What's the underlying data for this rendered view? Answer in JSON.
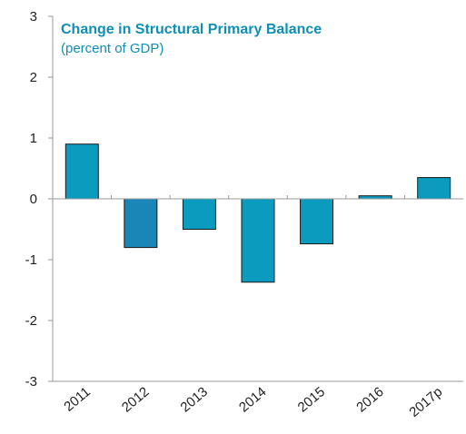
{
  "chart_data": {
    "type": "bar",
    "title": "Change in Structural Primary Balance",
    "subtitle": "(percent of GDP)",
    "categories": [
      "2011",
      "2012",
      "2013",
      "2014",
      "2015",
      "2016",
      "2017p"
    ],
    "values": [
      0.9,
      -0.8,
      -0.5,
      -1.37,
      -0.74,
      0.05,
      0.35
    ],
    "ylim": [
      -3,
      3
    ],
    "yticks": [
      3,
      2,
      1,
      0,
      -1,
      -2,
      -3
    ],
    "grid": false,
    "colors": {
      "bars": [
        "#0a9bbf",
        "#1a86b8",
        "#0a9bbf",
        "#0a9bbf",
        "#0a9bbf",
        "#0a9bbf",
        "#0a9bbf"
      ],
      "title": "#0e8fb3",
      "axis": "#9a9a9a"
    }
  }
}
